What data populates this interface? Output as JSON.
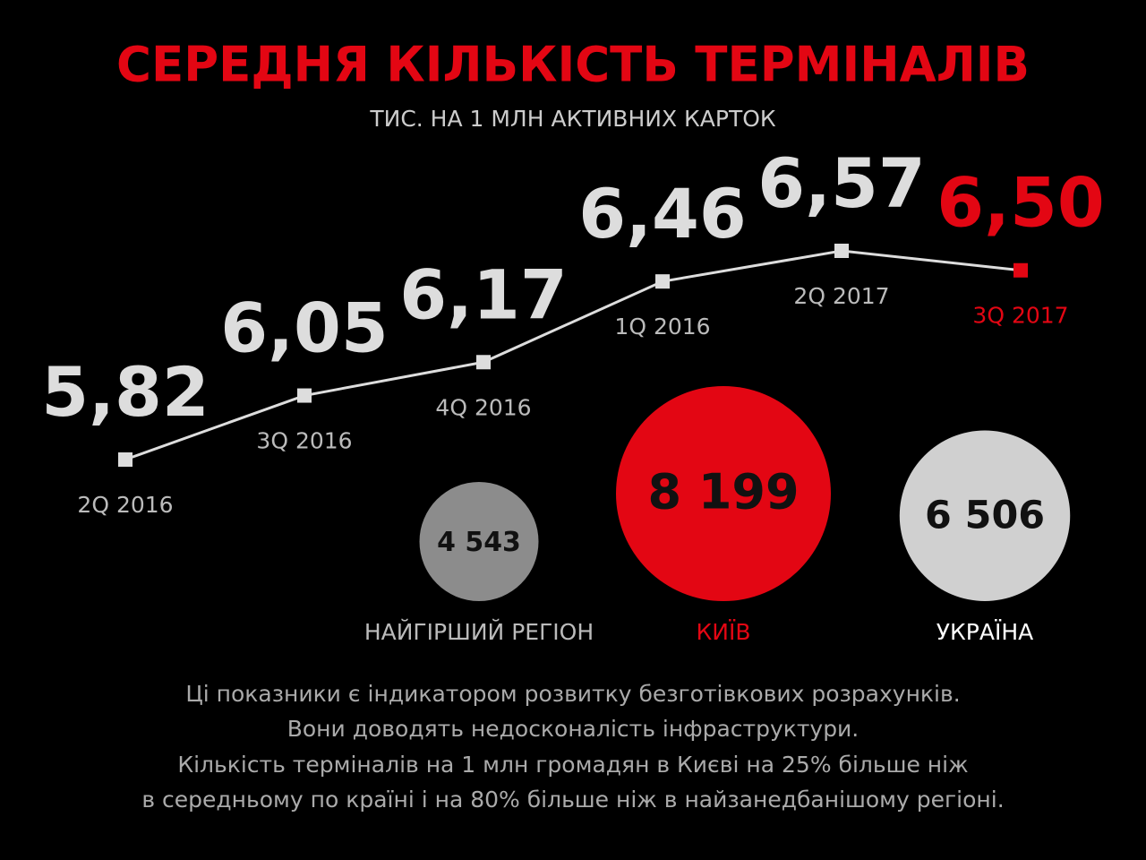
{
  "chart_data": [
    {
      "type": "line",
      "title": "СЕРЕДНЯ КІЛЬКІСТЬ ТЕРМІНАЛІВ",
      "subtitle": "ТИС. НА 1 МЛН АКТИВНИХ КАРТОК",
      "categories": [
        "2Q 2016",
        "3Q 2016",
        "4Q 2016",
        "1Q 2016",
        "2Q 2017",
        "3Q 2017"
      ],
      "series": [
        {
          "color": "#dddddd",
          "point_colors": [
            "#dddddd",
            "#dddddd",
            "#dddddd",
            "#dddddd",
            "#dddddd",
            "#e30613"
          ],
          "values": [
            5.82,
            6.05,
            6.17,
            6.46,
            6.57,
            6.5
          ],
          "value_labels": [
            "5,82",
            "6,05",
            "6,17",
            "6,46",
            "6,57",
            "6,50"
          ]
        }
      ]
    },
    {
      "type": "bubble",
      "categories": [
        "НАЙГІРШИЙ РЕГІОН",
        "КИЇВ",
        "УКРАЇНА"
      ],
      "values": [
        4543,
        8199,
        6506
      ],
      "value_labels": [
        "4 543",
        "8 199",
        "6 506"
      ],
      "colors": [
        "#8c8c8c",
        "#e30613",
        "#d0d0d0"
      ],
      "label_colors": [
        "#bbbbbb",
        "#e30613",
        "#ffffff"
      ]
    }
  ],
  "footer": {
    "lines": [
      "Ці показники є індикатором розвитку безготівкових розрахунків.",
      "Вони доводять недосконалість інфраструктури.",
      "Кількість терміналів на 1 млн громадян в Києві на 25% більше ніж",
      "в середньому по країні і на 80% більше ніж в найзанедбанішому регіоні."
    ]
  }
}
